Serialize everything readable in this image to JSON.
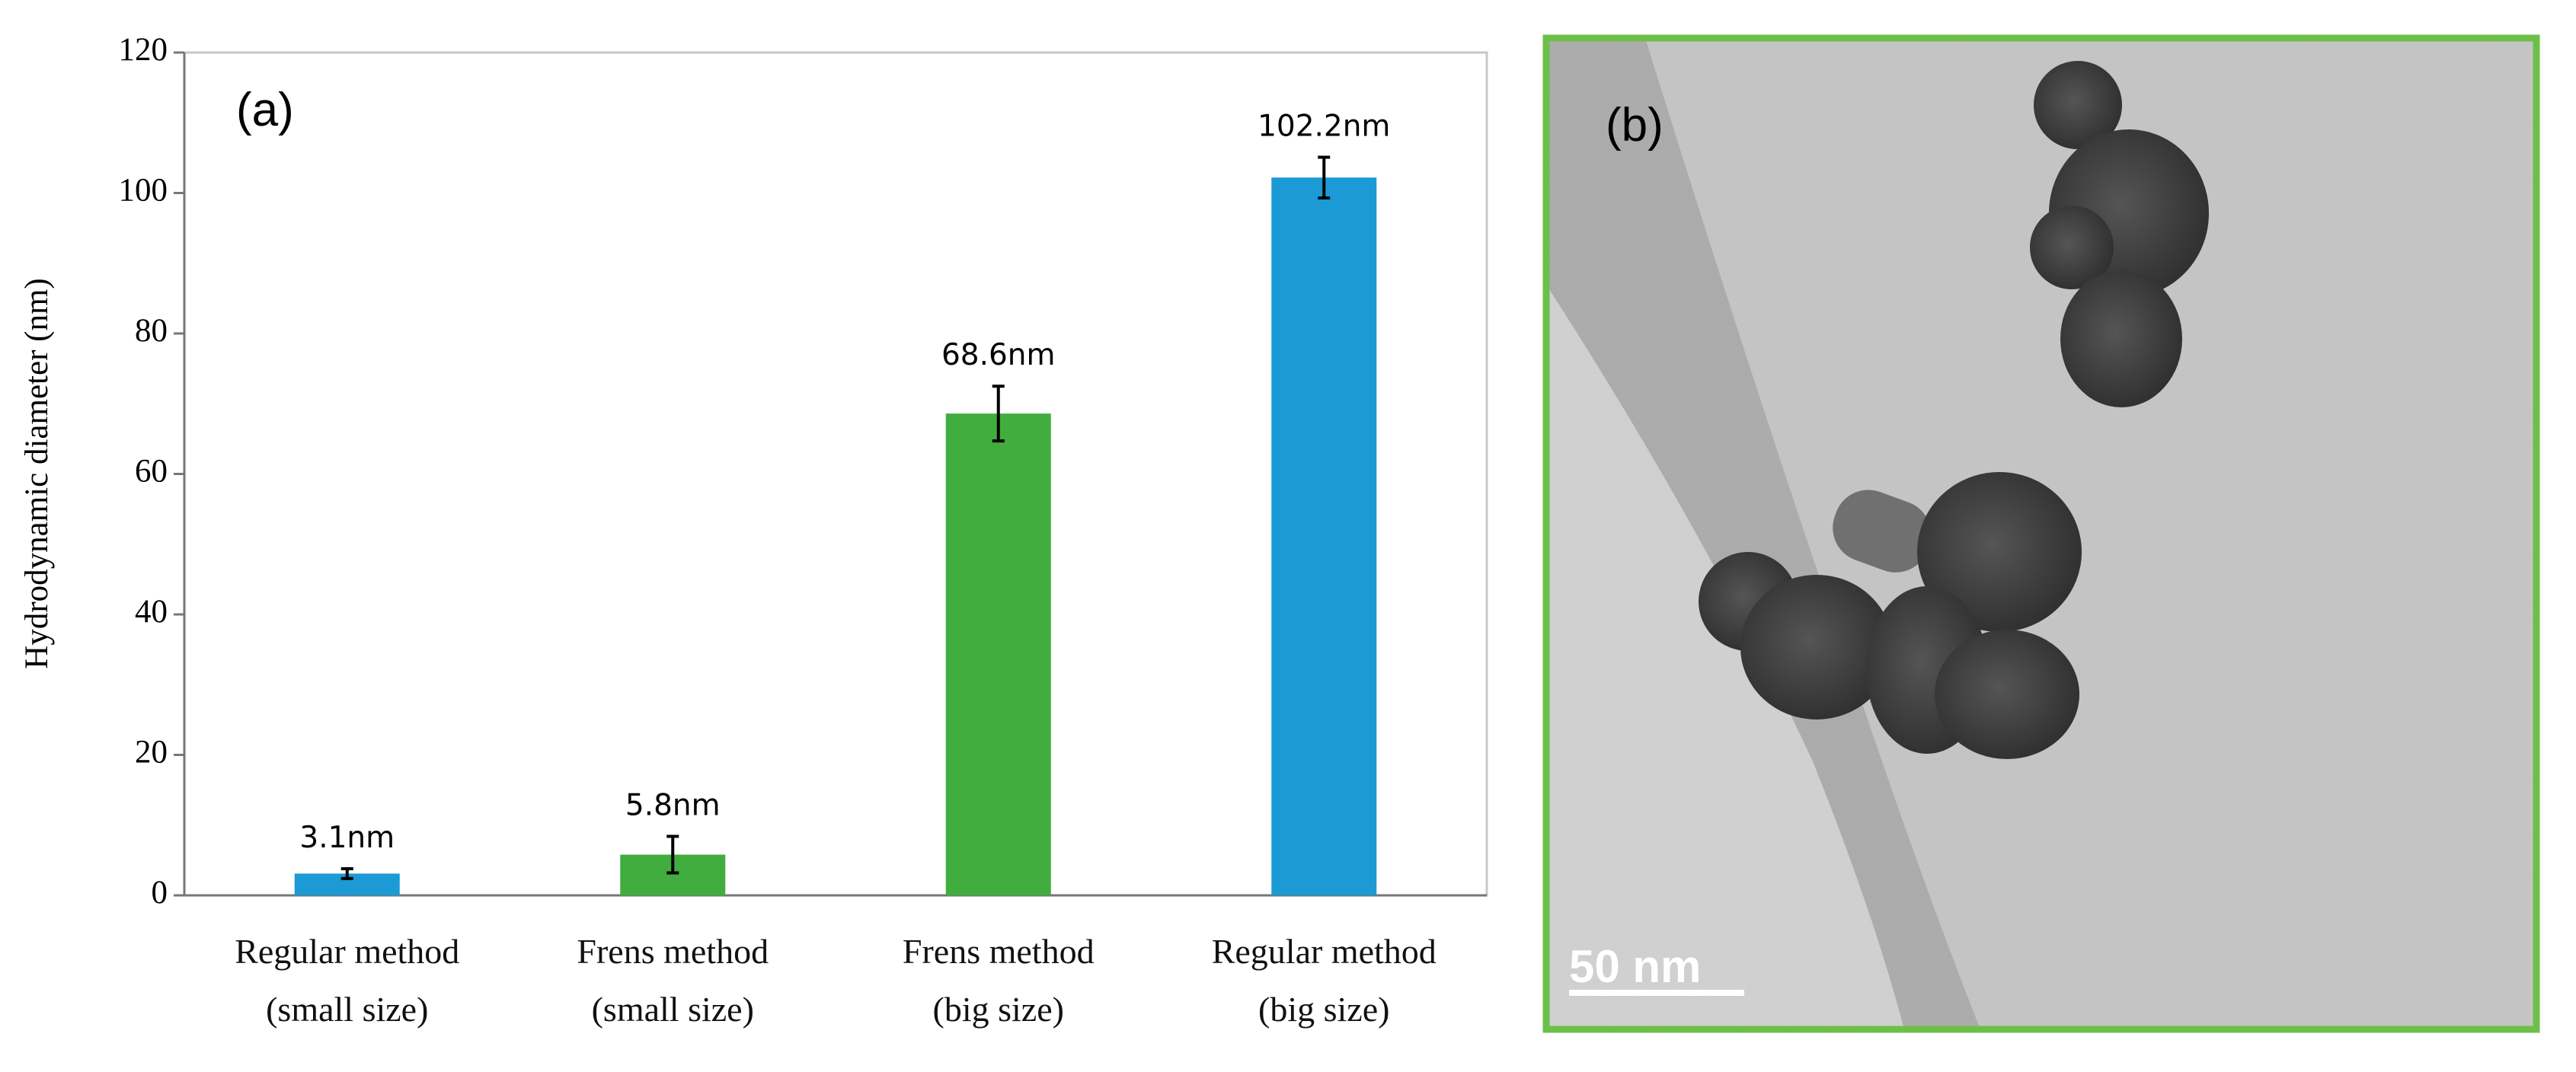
{
  "chart_data": {
    "type": "bar",
    "ylabel": "Hydrodynamic diameter (nm)",
    "annotation": "(a)",
    "categories": [
      "Regular method\n(small size)",
      "Frens method\n(small size)",
      "Frens method\n(big size)",
      "Regular method\n(big size)"
    ],
    "values": [
      3.1,
      5.8,
      68.6,
      102.2
    ],
    "value_labels": [
      "3.1nm",
      "5.8nm",
      "68.6nm",
      "102.2nm"
    ],
    "errors": [
      0.7,
      2.6,
      3.9,
      2.9
    ],
    "colors": [
      "#1b9ad6",
      "#41ad3e",
      "#41ad3e",
      "#1b9ad6"
    ],
    "ylim": [
      0,
      120
    ],
    "yticks": [
      0,
      20,
      40,
      60,
      80,
      100,
      120
    ],
    "grid": false
  },
  "panel_b": {
    "label": "(b)",
    "scale_bar": "50 nm"
  }
}
